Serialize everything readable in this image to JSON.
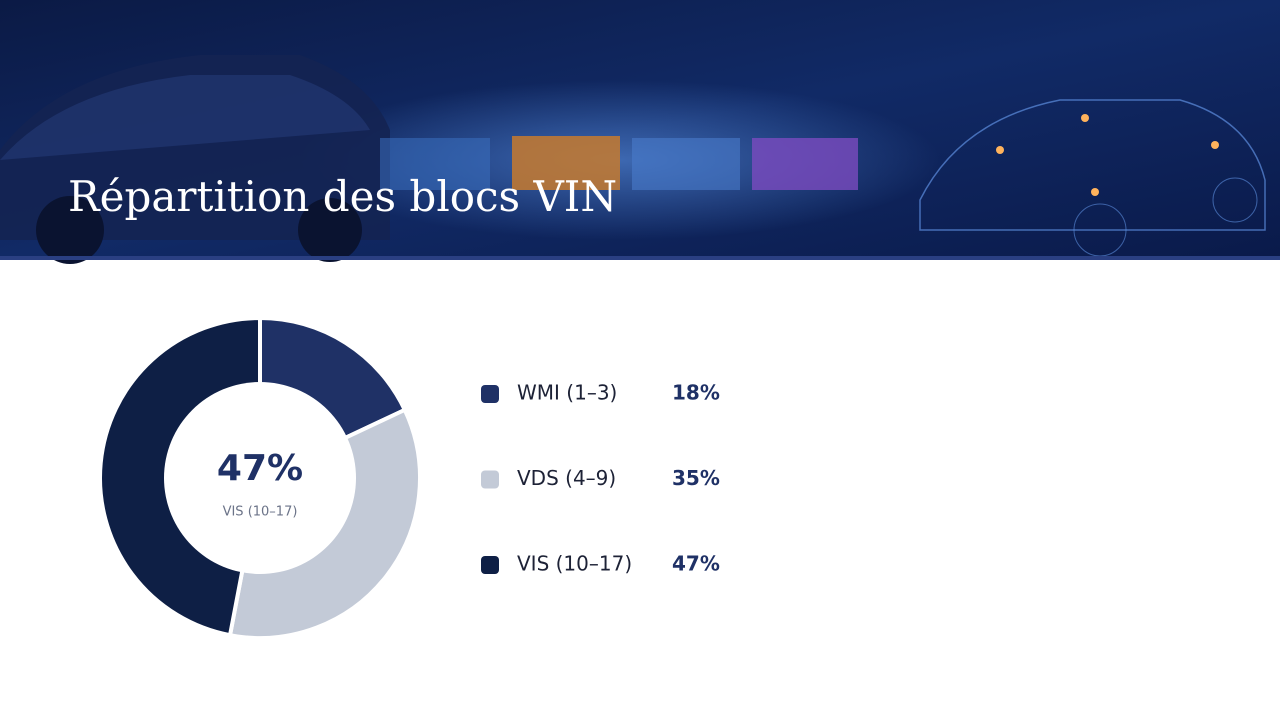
{
  "chart_data": {
    "type": "donut",
    "title": "Répartition des blocs VIN",
    "categories": [
      "WMI (1–3)",
      "VDS (4–9)",
      "VIS (10–17)"
    ],
    "values": [
      18,
      35,
      47
    ],
    "value_labels": [
      "18%",
      "35%",
      "47%"
    ],
    "colors": [
      "#1f3166",
      "#c3cad7",
      "#0e1f45"
    ]
  }
}
